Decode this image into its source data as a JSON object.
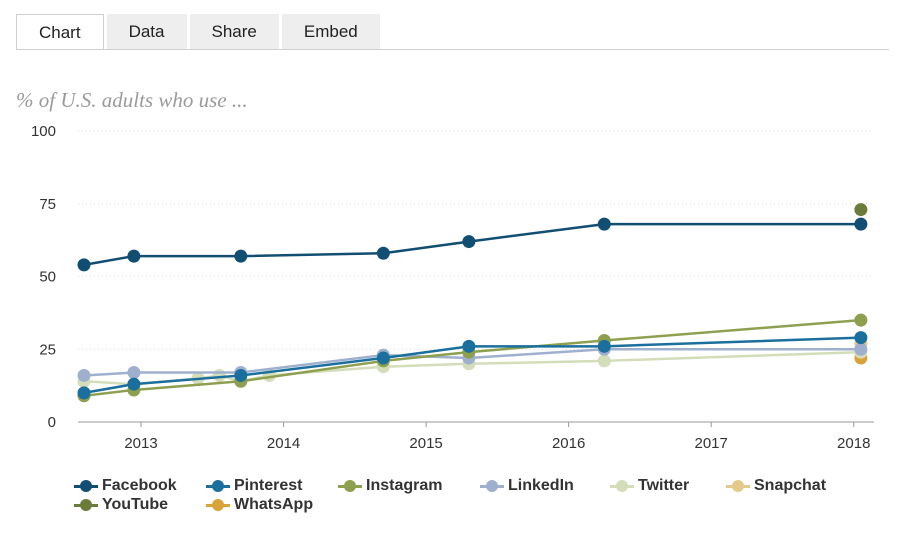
{
  "tabs": [
    {
      "label": "Chart",
      "active": true
    },
    {
      "label": "Data",
      "active": false
    },
    {
      "label": "Share",
      "active": false
    },
    {
      "label": "Embed",
      "active": false
    }
  ],
  "chart_data": {
    "type": "line",
    "title": "% of U.S. adults who use ...",
    "xlabel": "",
    "ylabel": "",
    "ylim": [
      0,
      100
    ],
    "yticks": [
      0,
      25,
      50,
      75,
      100
    ],
    "xlim": [
      2012.6,
      2018.1
    ],
    "xticks": [
      {
        "value": 2013,
        "label": "2013"
      },
      {
        "value": 2014,
        "label": "2014"
      },
      {
        "value": 2015,
        "label": "2015"
      },
      {
        "value": 2016,
        "label": "2016"
      },
      {
        "value": 2017,
        "label": "2017"
      },
      {
        "value": 2018,
        "label": "2018"
      }
    ],
    "grid": "horizontal-dotted",
    "legend_position": "bottom",
    "series": [
      {
        "name": "Facebook",
        "color": "#114e72",
        "x": [
          2012.6,
          2012.95,
          2013.7,
          2014.7,
          2015.3,
          2016.25,
          2018.05
        ],
        "y": [
          54,
          57,
          57,
          58,
          62,
          68,
          68
        ]
      },
      {
        "name": "Pinterest",
        "color": "#1a6f9c",
        "x": [
          2012.6,
          2012.95,
          2013.7,
          2014.7,
          2015.3,
          2016.25,
          2018.05
        ],
        "y": [
          10,
          13,
          16,
          22,
          26,
          26,
          29
        ]
      },
      {
        "name": "Instagram",
        "color": "#8ea04f",
        "x": [
          2012.6,
          2012.95,
          2013.7,
          2014.7,
          2015.3,
          2016.25,
          2018.05
        ],
        "y": [
          9,
          11,
          14,
          21,
          24,
          28,
          35
        ]
      },
      {
        "name": "LinkedIn",
        "color": "#9fb0cf",
        "x": [
          2012.6,
          2012.95,
          2013.7,
          2014.7,
          2015.3,
          2016.25,
          2018.05
        ],
        "y": [
          16,
          17,
          17,
          23,
          22,
          25,
          25
        ]
      },
      {
        "name": "Twitter",
        "color": "#d4ddb9",
        "x": [
          2012.6,
          2012.95,
          2013.4,
          2013.55,
          2013.7,
          2013.9,
          2014.7,
          2015.3,
          2016.25,
          2018.05
        ],
        "y": [
          14,
          13,
          15,
          16,
          14,
          16,
          19,
          20,
          21,
          24
        ]
      },
      {
        "name": "Snapchat",
        "color": "#e4c98c",
        "x": [
          2018.05
        ],
        "y": [
          27
        ]
      },
      {
        "name": "YouTube",
        "color": "#6b7c3a",
        "x": [
          2018.05
        ],
        "y": [
          73
        ]
      },
      {
        "name": "WhatsApp",
        "color": "#d8a43a",
        "x": [
          2018.05
        ],
        "y": [
          22
        ]
      }
    ]
  }
}
